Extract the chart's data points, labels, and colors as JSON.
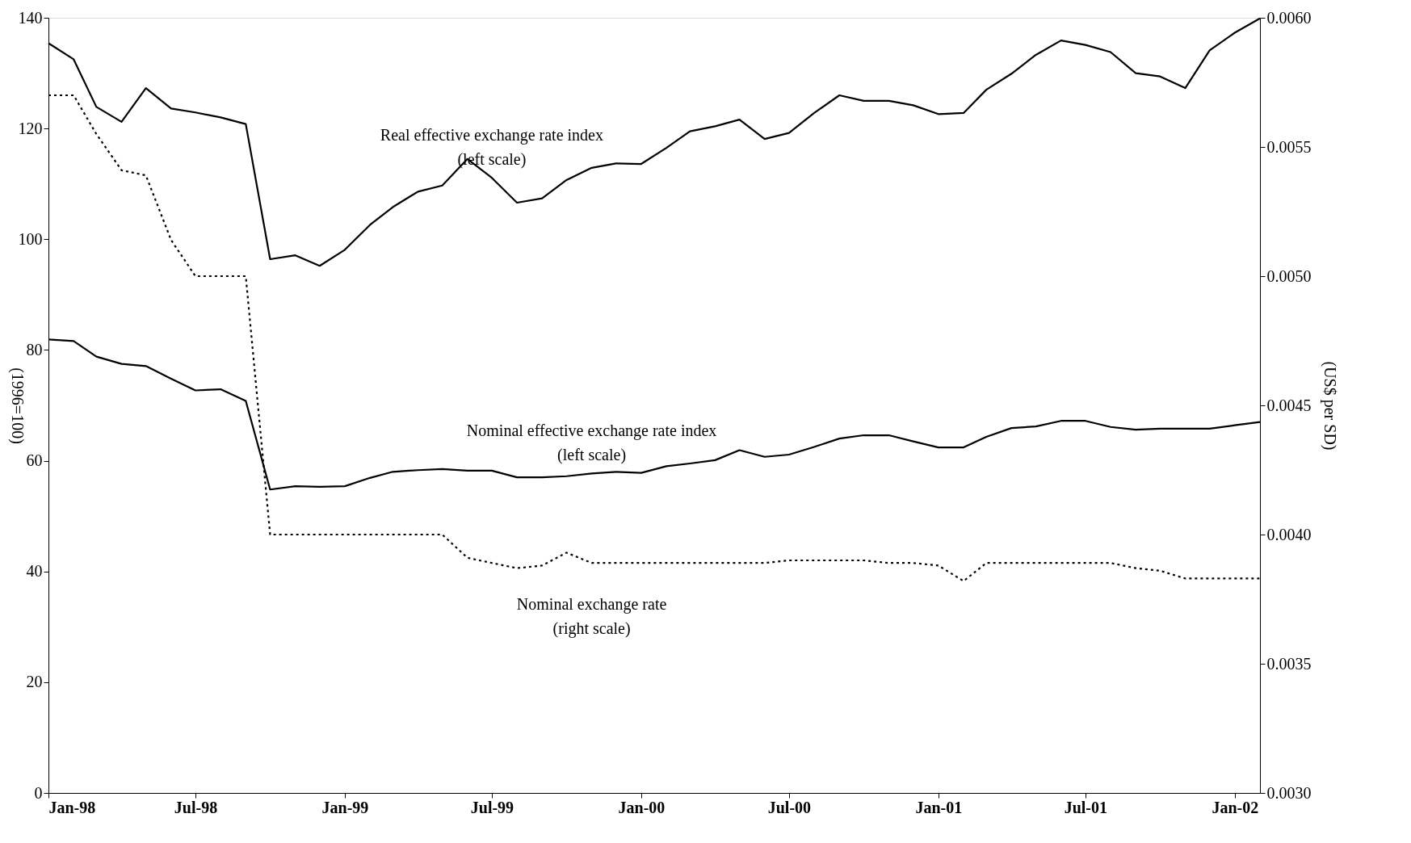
{
  "chart_data": {
    "type": "line",
    "ylabel": "(1996=100)",
    "y2label": "(US$ per SD)",
    "x": [
      "1998-01",
      "1998-02",
      "1998-03",
      "1998-04",
      "1998-05",
      "1998-06",
      "1998-07",
      "1998-08",
      "1998-09",
      "1998-10",
      "1998-11",
      "1998-12",
      "1999-01",
      "1999-02",
      "1999-03",
      "1999-04",
      "1999-05",
      "1999-06",
      "1999-07",
      "1999-08",
      "1999-09",
      "1999-10",
      "1999-11",
      "1999-12",
      "2000-01",
      "2000-02",
      "2000-03",
      "2000-04",
      "2000-05",
      "2000-06",
      "2000-07",
      "2000-08",
      "2000-09",
      "2000-10",
      "2000-11",
      "2000-12",
      "2001-01",
      "2001-02",
      "2001-03",
      "2001-04",
      "2001-05",
      "2001-06",
      "2001-07",
      "2001-08",
      "2001-09",
      "2001-10",
      "2001-11",
      "2001-12",
      "2002-01",
      "2002-02"
    ],
    "series": [
      {
        "name": "Real effective exchange rate index\n(left scale)",
        "color": "#000000",
        "line_style": "solid",
        "values": [
          135.4,
          132.5,
          123.9,
          121.2,
          127.3,
          123.6,
          122.9,
          122.0,
          120.8,
          96.4,
          97.1,
          95.2,
          98.1,
          102.6,
          105.8,
          108.6,
          109.7,
          114.5,
          111.1,
          106.6,
          107.4,
          110.7,
          112.9,
          113.7,
          113.6,
          116.5,
          119.5,
          120.4,
          121.6,
          118.1,
          119.2,
          122.8,
          126.0,
          125.0,
          125.0,
          124.2,
          122.6,
          122.8,
          127.0,
          129.9,
          133.3,
          135.9,
          135.1,
          133.8,
          130.0,
          129.4,
          127.3,
          134.1,
          137.3,
          139.9
        ]
      },
      {
        "name": "Nominal effective exchange rate index\n(left scale)",
        "color": "#000000",
        "line_style": "solid",
        "values": [
          81.9,
          81.6,
          78.8,
          77.5,
          77.1,
          74.8,
          72.7,
          72.9,
          70.8,
          54.8,
          55.4,
          55.3,
          55.4,
          56.9,
          58.0,
          58.3,
          58.5,
          58.2,
          58.2,
          57.0,
          57.0,
          57.2,
          57.7,
          58.0,
          57.8,
          59.0,
          59.5,
          60.1,
          61.9,
          60.7,
          61.1,
          62.5,
          64.0,
          64.6,
          64.6,
          63.5,
          62.4,
          62.4,
          64.3,
          65.9,
          66.2,
          67.2,
          67.2,
          66.1,
          65.6,
          65.8,
          65.8,
          65.8,
          66.4,
          67.0
        ]
      },
      {
        "name": "Nominal exchange rate\n(right scale)",
        "color": "#000000",
        "line_style": "dotted",
        "axis": "y2",
        "values": [
          0.0057,
          0.0057,
          0.00555,
          0.00541,
          0.00539,
          0.00514,
          0.005,
          0.005,
          0.005,
          0.004,
          0.004,
          0.004,
          0.004,
          0.004,
          0.004,
          0.004,
          0.004,
          0.00391,
          0.00389,
          0.00387,
          0.00388,
          0.00393,
          0.00389,
          0.00389,
          0.00389,
          0.00389,
          0.00389,
          0.00389,
          0.00389,
          0.00389,
          0.0039,
          0.0039,
          0.0039,
          0.0039,
          0.00389,
          0.00389,
          0.00388,
          0.00382,
          0.00389,
          0.00389,
          0.00389,
          0.00389,
          0.00389,
          0.00389,
          0.00387,
          0.00386,
          0.00383,
          0.00383,
          0.00383,
          0.00383
        ]
      }
    ],
    "xlim": [
      "1998-01",
      "2002-02"
    ],
    "xticks": [
      {
        "value": "1998-01",
        "label": "Jan-98"
      },
      {
        "value": "1998-07",
        "label": "Jul-98"
      },
      {
        "value": "1999-01",
        "label": "Jan-99"
      },
      {
        "value": "1999-07",
        "label": "Jul-99"
      },
      {
        "value": "2000-01",
        "label": "Jan-00"
      },
      {
        "value": "2000-07",
        "label": "Jul-00"
      },
      {
        "value": "2001-01",
        "label": "Jan-01"
      },
      {
        "value": "2001-07",
        "label": "Jul-01"
      },
      {
        "value": "2002-01",
        "label": "Jan-02"
      }
    ],
    "ylim": [
      0,
      140
    ],
    "yticks": [
      0,
      20,
      40,
      60,
      80,
      100,
      120,
      140
    ],
    "y2lim": [
      0.003,
      0.006
    ],
    "y2ticks": [
      {
        "value": 0.003,
        "label": "0.0030"
      },
      {
        "value": 0.0035,
        "label": "0.0035"
      },
      {
        "value": 0.004,
        "label": "0.0040"
      },
      {
        "value": 0.0045,
        "label": "0.0045"
      },
      {
        "value": 0.005,
        "label": "0.0050"
      },
      {
        "value": 0.0055,
        "label": "0.0055"
      },
      {
        "value": 0.006,
        "label": "0.0060"
      }
    ],
    "grid": false,
    "marker": "none"
  }
}
